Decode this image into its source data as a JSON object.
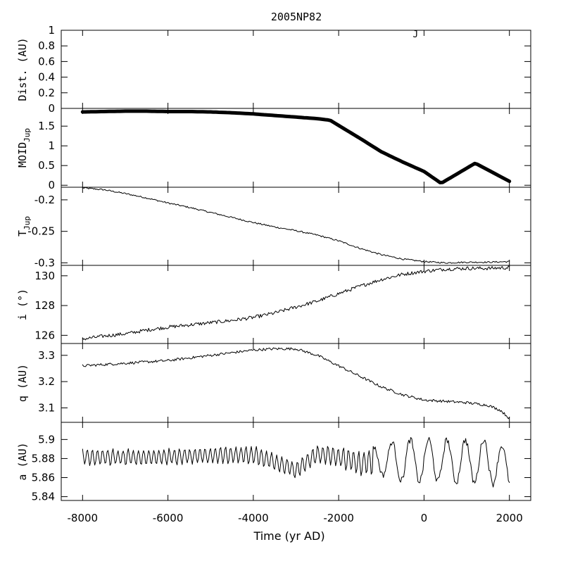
{
  "chart_data": {
    "type": "line",
    "title": "2005NP82",
    "xlabel": "Time (yr AD)",
    "xlim": [
      -8500,
      2500
    ],
    "xticks": [
      -8000,
      -6000,
      -4000,
      -2000,
      0,
      2000
    ],
    "xticklabels": [
      "-8000",
      "-6000",
      "-4000",
      "-2000",
      "0",
      "2000"
    ],
    "panels": [
      {
        "id": "dist",
        "ylabel": "Dist. (AU)",
        "ylim": [
          0,
          1
        ],
        "yticks": [
          0,
          0.2,
          0.4,
          0.6,
          0.8,
          1
        ],
        "yticklabels": [
          "0",
          "0.2",
          "0.4",
          "0.6",
          "0.8",
          "1"
        ],
        "annotations": [
          {
            "text": "J",
            "x": -200,
            "y": 0.98
          }
        ],
        "series": []
      },
      {
        "id": "moid",
        "ylabel": "MOID",
        "ylabel_sub": "Jup",
        "ylim": [
          -0.05,
          1.95
        ],
        "yticks": [
          0,
          0.5,
          1,
          1.5
        ],
        "yticklabels": [
          "0",
          "0.5",
          "1",
          "1.5"
        ],
        "style": "thick",
        "series": [
          {
            "x": [
              -8000,
              -7500,
              -7000,
              -6500,
              -6000,
              -5500,
              -5000,
              -4500,
              -4000,
              -3500,
              -3000,
              -2500,
              -2200,
              -1500,
              -1000,
              -500,
              0,
              400,
              1200,
              2000
            ],
            "y": [
              1.86,
              1.87,
              1.88,
              1.88,
              1.87,
              1.87,
              1.86,
              1.84,
              1.81,
              1.77,
              1.73,
              1.69,
              1.65,
              1.19,
              0.85,
              0.59,
              0.35,
              0.05,
              0.56,
              0.1
            ]
          }
        ]
      },
      {
        "id": "tjup",
        "ylabel": "T",
        "ylabel_sub": "Jup",
        "ylim": [
          -0.304,
          -0.18
        ],
        "yticks": [
          -0.3,
          -0.25,
          -0.2
        ],
        "yticklabels": [
          "-0.3",
          "-0.25",
          "-0.2"
        ],
        "noise": 0.0012,
        "series": [
          {
            "x": [
              -8000,
              -7500,
              -7000,
              -6500,
              -6000,
              -5500,
              -5000,
              -4500,
              -4000,
              -3500,
              -3000,
              -2500,
              -2000,
              -1500,
              -1000,
              -500,
              0,
              500,
              1000,
              1500,
              2000
            ],
            "y": [
              -0.181,
              -0.184,
              -0.19,
              -0.197,
              -0.205,
              -0.212,
              -0.22,
              -0.228,
              -0.236,
              -0.243,
              -0.249,
              -0.256,
              -0.265,
              -0.277,
              -0.287,
              -0.294,
              -0.298,
              -0.3,
              -0.299,
              -0.299,
              -0.298
            ]
          }
        ]
      },
      {
        "id": "incl",
        "ylabel": "i (°)",
        "ylim": [
          125.45,
          130.7
        ],
        "yticks": [
          126,
          128,
          130
        ],
        "yticklabels": [
          "126",
          "128",
          "130"
        ],
        "noise": 0.12,
        "series": [
          {
            "x": [
              -8000,
              -7500,
              -7000,
              -6500,
              -6000,
              -5500,
              -5000,
              -4500,
              -4000,
              -3500,
              -3000,
              -2500,
              -2000,
              -1500,
              -1000,
              -500,
              0,
              500,
              1000,
              1500,
              2000
            ],
            "y": [
              125.75,
              125.95,
              126.1,
              126.35,
              126.55,
              126.7,
              126.85,
              127.0,
              127.2,
              127.5,
              127.9,
              128.3,
              128.8,
              129.3,
              129.75,
              130.1,
              130.3,
              130.45,
              130.5,
              130.5,
              130.55
            ]
          }
        ]
      },
      {
        "id": "q",
        "ylabel": "q (AU)",
        "ylim": [
          3.045,
          3.345
        ],
        "yticks": [
          3.1,
          3.2,
          3.3
        ],
        "yticklabels": [
          "3.1",
          "3.2",
          "3.3"
        ],
        "noise": 0.005,
        "series": [
          {
            "x": [
              -8000,
              -7500,
              -7000,
              -6500,
              -6000,
              -5500,
              -5000,
              -4500,
              -4000,
              -3500,
              -3000,
              -2500,
              -2000,
              -1500,
              -1000,
              -500,
              0,
              500,
              1000,
              1500,
              1800,
              2000
            ],
            "y": [
              3.26,
              3.265,
              3.27,
              3.275,
              3.28,
              3.29,
              3.3,
              3.31,
              3.32,
              3.325,
              3.325,
              3.3,
              3.26,
              3.22,
              3.18,
              3.15,
              3.13,
              3.125,
              3.12,
              3.11,
              3.09,
              3.06
            ]
          }
        ]
      },
      {
        "id": "a",
        "ylabel": "a (AU)",
        "ylim": [
          5.836,
          5.918
        ],
        "yticks": [
          5.84,
          5.86,
          5.88,
          5.9
        ],
        "yticklabels": [
          "5.84",
          "5.86",
          "5.88",
          "5.9"
        ],
        "oscillate": true,
        "series": [
          {
            "x": [
              -8000,
              -7000,
              -6000,
              -5000,
              -4000,
              -3000,
              -2500,
              -2000,
              -1500,
              -1000,
              -500,
              0,
              500,
              1000,
              1500,
              2000
            ],
            "y": [
              5.882,
              5.881,
              5.882,
              5.883,
              5.884,
              5.868,
              5.885,
              5.882,
              5.875,
              5.879,
              5.878,
              5.878,
              5.878,
              5.877,
              5.878,
              5.87
            ],
            "amplitude": [
              0.008,
              0.008,
              0.008,
              0.008,
              0.009,
              0.008,
              0.009,
              0.01,
              0.012,
              0.016,
              0.022,
              0.022,
              0.022,
              0.023,
              0.023,
              0.02
            ]
          }
        ]
      }
    ]
  }
}
